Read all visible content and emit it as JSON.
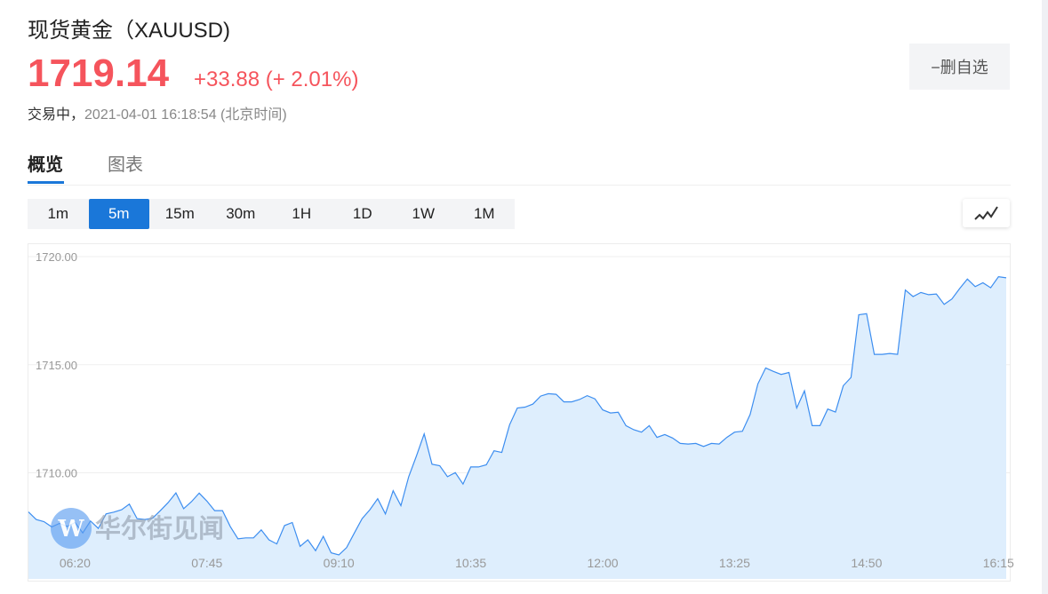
{
  "header": {
    "title": "现货黄金（XAUUSD)",
    "price": "1719.14",
    "change": "+33.88 (+ 2.01%)",
    "status": "交易中，",
    "timestamp": "2021-04-01 16:18:54 (北京时间)",
    "watchlist_button": "−删自选"
  },
  "tabs": [
    {
      "label": "概览",
      "active": true
    },
    {
      "label": "图表",
      "active": false
    }
  ],
  "periods": [
    {
      "label": "1m",
      "active": false
    },
    {
      "label": "5m",
      "active": true
    },
    {
      "label": "15m",
      "active": false
    },
    {
      "label": "30m",
      "active": false
    },
    {
      "label": "1H",
      "active": false
    },
    {
      "label": "1D",
      "active": false
    },
    {
      "label": "1W",
      "active": false
    },
    {
      "label": "1M",
      "active": false
    }
  ],
  "chart_type_icon": "line-chart-icon",
  "colors": {
    "up": "#f5545c",
    "accent": "#1a77d9",
    "line": "#3d8ef0",
    "fill": "#deeefd"
  },
  "watermark": "华尔街见闻",
  "chart_data": {
    "type": "area",
    "title": "",
    "xlabel": "",
    "ylabel": "",
    "ylim": [
      1705.35,
      1720.6
    ],
    "grid": true,
    "y_ticks": [
      "1720.00",
      "1715.00",
      "1710.00"
    ],
    "y_tick_values": [
      1720,
      1715,
      1710
    ],
    "x_ticks": [
      "06:20",
      "07:45",
      "09:10",
      "10:35",
      "12:00",
      "13:25",
      "14:50",
      "16:15"
    ],
    "interval": "5m",
    "values": [
      1708.19,
      1707.84,
      1707.74,
      1707.5,
      1707.66,
      1707.52,
      1707.7,
      1707.22,
      1707.77,
      1707.43,
      1708.1,
      1708.18,
      1708.29,
      1708.55,
      1707.88,
      1707.84,
      1707.9,
      1708.25,
      1708.62,
      1709.07,
      1708.34,
      1708.66,
      1709.06,
      1708.69,
      1708.25,
      1708.25,
      1707.52,
      1706.95,
      1706.99,
      1706.99,
      1707.36,
      1706.9,
      1706.71,
      1707.56,
      1707.7,
      1706.6,
      1706.9,
      1706.4,
      1707.06,
      1706.3,
      1706.2,
      1706.54,
      1707.22,
      1707.88,
      1708.29,
      1708.8,
      1708.1,
      1709.17,
      1708.48,
      1709.82,
      1710.78,
      1711.8,
      1710.4,
      1710.33,
      1709.82,
      1710.01,
      1709.48,
      1710.27,
      1710.27,
      1710.37,
      1711.02,
      1710.94,
      1712.22,
      1713.0,
      1713.04,
      1713.18,
      1713.55,
      1713.66,
      1713.63,
      1713.28,
      1713.28,
      1713.39,
      1713.57,
      1713.42,
      1712.91,
      1712.77,
      1712.8,
      1712.18,
      1711.99,
      1711.88,
      1712.18,
      1711.64,
      1711.77,
      1711.61,
      1711.36,
      1711.33,
      1711.36,
      1711.22,
      1711.36,
      1711.33,
      1711.64,
      1711.88,
      1711.92,
      1712.7,
      1714.11,
      1714.85,
      1714.69,
      1714.55,
      1714.64,
      1713.0,
      1713.79,
      1712.18,
      1712.18,
      1712.95,
      1712.81,
      1714.03,
      1714.41,
      1717.31,
      1717.36,
      1715.48,
      1715.48,
      1715.52,
      1715.48,
      1718.45,
      1718.15,
      1718.34,
      1718.24,
      1718.27,
      1717.79,
      1718.04,
      1718.52,
      1718.96,
      1718.61,
      1718.79,
      1718.56,
      1719.07,
      1719.02
    ]
  }
}
